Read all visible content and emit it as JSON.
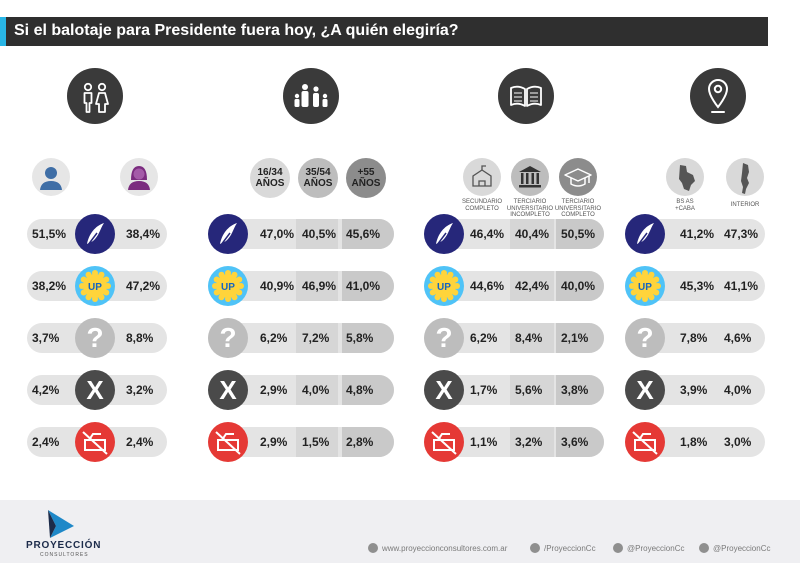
{
  "title": "Si el balotaje para Presidente fuera hoy, ¿A quién elegiría?",
  "chart_data": {
    "type": "table",
    "candidates": [
      "La Libertad Avanza",
      "Unión por la Patria",
      "No sabe",
      "Ninguno",
      "No votaría"
    ],
    "groups": [
      {
        "name": "genero",
        "columns": [
          "Hombre",
          "Mujer"
        ],
        "values": [
          [
            "51,5%",
            "38,4%"
          ],
          [
            "38,2%",
            "47,2%"
          ],
          [
            "3,7%",
            "8,8%"
          ],
          [
            "4,2%",
            "3,2%"
          ],
          [
            "2,4%",
            "2,4%"
          ]
        ]
      },
      {
        "name": "edad",
        "columns": [
          "16/34 AÑOS",
          "35/54 AÑOS",
          "+55 AÑOS"
        ],
        "values": [
          [
            "47,0%",
            "40,5%",
            "45,6%"
          ],
          [
            "40,9%",
            "46,9%",
            "41,0%"
          ],
          [
            "6,2%",
            "7,2%",
            "5,8%"
          ],
          [
            "2,9%",
            "4,0%",
            "4,8%"
          ],
          [
            "2,9%",
            "1,5%",
            "2,8%"
          ]
        ]
      },
      {
        "name": "educacion",
        "columns": [
          "SECUNDARIO COMPLETO",
          "TERCIARIO UNIVERSITARIO INCOMPLETO",
          "TERCIARIO UNIVERSITARIO COMPLETO"
        ],
        "values": [
          [
            "46,4%",
            "40,4%",
            "50,5%"
          ],
          [
            "44,6%",
            "42,4%",
            "40,0%"
          ],
          [
            "6,2%",
            "8,4%",
            "2,1%"
          ],
          [
            "1,7%",
            "5,6%",
            "3,8%"
          ],
          [
            "1,1%",
            "3,2%",
            "3,6%"
          ]
        ]
      },
      {
        "name": "region",
        "columns": [
          "BS AS +CABA",
          "INTERIOR"
        ],
        "values": [
          [
            "41,2%",
            "47,3%"
          ],
          [
            "45,3%",
            "41,1%"
          ],
          [
            "7,8%",
            "4,6%"
          ],
          [
            "3,9%",
            "4,0%"
          ],
          [
            "1,8%",
            "3,0%"
          ]
        ]
      }
    ]
  },
  "labels": {
    "age": [
      "16/34\nAÑOS",
      "35/54\nAÑOS",
      "+55\nAÑOS"
    ],
    "edu": [
      "SECUNDARIO\nCOMPLETO",
      "TERCIARIO\nUNIVERSITARIO\nINCOMPLETO",
      "TERCIARIO\nUNIVERSITARIO\nCOMPLETO"
    ],
    "region": [
      "BS AS\n+CABA",
      "INTERIOR"
    ],
    "up_badge": "UP",
    "q_mark": "?",
    "x_mark": "X"
  },
  "footer": {
    "brand": "PROYECCIÓN",
    "brand_sub": "CONSULTORES",
    "website": "www.proyeccionconsultores.com.ar",
    "facebook": "/ProyeccionCc",
    "twitter": "@ProyeccionCc",
    "instagram": "@ProyeccionCc"
  },
  "colors": {
    "lla": "#26277a",
    "up": "#4fc3f7",
    "nsnc": "#bdbdbd",
    "ninguno": "#4a4a4a",
    "novota": "#e53935",
    "accent": "#29b6e6"
  }
}
